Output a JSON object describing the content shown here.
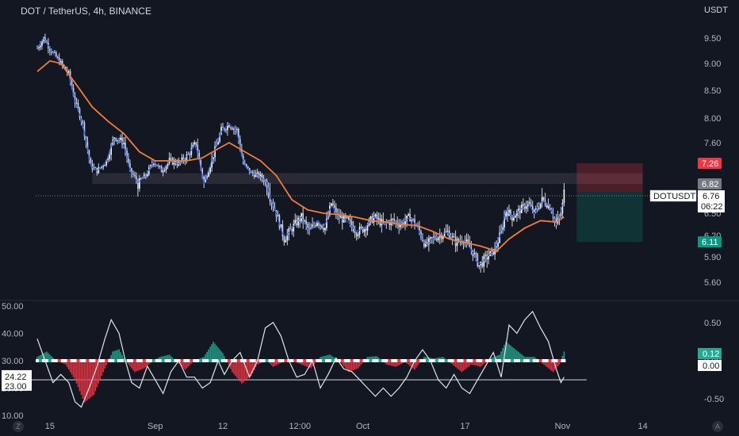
{
  "header": {
    "title": "DOT / TetherUS, 4h, BINANCE",
    "currency": "USDT"
  },
  "chart_data": [
    {
      "type": "candlestick",
      "title": "DOT / TetherUS, 4h, BINANCE",
      "y_unit": "USDT",
      "y_ticks": [
        "9.50",
        "9.00",
        "8.50",
        "8.00",
        "7.60",
        "6.50",
        "6.20",
        "5.90",
        "5.60"
      ],
      "ylim": [
        5.45,
        10.0
      ],
      "x_ticks": [
        {
          "label": "15",
          "t": 8
        },
        {
          "label": "Sep",
          "t": 75
        },
        {
          "label": "12",
          "t": 118
        },
        {
          "label": "12:00",
          "t": 167
        },
        {
          "label": "Oct",
          "t": 207
        },
        {
          "label": "17",
          "t": 272
        },
        {
          "label": "Nov",
          "t": 334
        },
        {
          "label": "14",
          "t": 385
        }
      ],
      "x_range": [
        -1,
        420
      ],
      "last_t": 335,
      "close_series": [
        {
          "t": 0,
          "v": 9.3
        },
        {
          "t": 4,
          "v": 9.5
        },
        {
          "t": 10,
          "v": 9.2
        },
        {
          "t": 15,
          "v": 9.0
        },
        {
          "t": 20,
          "v": 8.8
        },
        {
          "t": 24,
          "v": 8.3
        },
        {
          "t": 29,
          "v": 7.9
        },
        {
          "t": 34,
          "v": 7.2
        },
        {
          "t": 38,
          "v": 7.1
        },
        {
          "t": 44,
          "v": 7.3
        },
        {
          "t": 49,
          "v": 7.7
        },
        {
          "t": 55,
          "v": 7.6
        },
        {
          "t": 59,
          "v": 7.1
        },
        {
          "t": 64,
          "v": 6.85
        },
        {
          "t": 69,
          "v": 7.0
        },
        {
          "t": 74,
          "v": 7.3
        },
        {
          "t": 79,
          "v": 7.1
        },
        {
          "t": 84,
          "v": 7.3
        },
        {
          "t": 90,
          "v": 7.25
        },
        {
          "t": 96,
          "v": 7.4
        },
        {
          "t": 101,
          "v": 7.6
        },
        {
          "t": 106,
          "v": 6.85
        },
        {
          "t": 112,
          "v": 7.4
        },
        {
          "t": 117,
          "v": 7.8
        },
        {
          "t": 122,
          "v": 7.9
        },
        {
          "t": 127,
          "v": 7.8
        },
        {
          "t": 131,
          "v": 7.25
        },
        {
          "t": 136,
          "v": 7.05
        },
        {
          "t": 141,
          "v": 7.0
        },
        {
          "t": 146,
          "v": 6.85
        },
        {
          "t": 152,
          "v": 6.5
        },
        {
          "t": 157,
          "v": 6.15
        },
        {
          "t": 162,
          "v": 6.3
        },
        {
          "t": 168,
          "v": 6.45
        },
        {
          "t": 173,
          "v": 6.25
        },
        {
          "t": 178,
          "v": 6.4
        },
        {
          "t": 183,
          "v": 6.3
        },
        {
          "t": 187,
          "v": 6.65
        },
        {
          "t": 191,
          "v": 6.45
        },
        {
          "t": 197,
          "v": 6.4
        },
        {
          "t": 203,
          "v": 6.25
        },
        {
          "t": 208,
          "v": 6.3
        },
        {
          "t": 214,
          "v": 6.45
        },
        {
          "t": 220,
          "v": 6.35
        },
        {
          "t": 226,
          "v": 6.4
        },
        {
          "t": 231,
          "v": 6.35
        },
        {
          "t": 237,
          "v": 6.45
        },
        {
          "t": 242,
          "v": 6.3
        },
        {
          "t": 247,
          "v": 6.05
        },
        {
          "t": 251,
          "v": 6.15
        },
        {
          "t": 256,
          "v": 6.2
        },
        {
          "t": 261,
          "v": 6.25
        },
        {
          "t": 266,
          "v": 6.1
        },
        {
          "t": 271,
          "v": 6.15
        },
        {
          "t": 276,
          "v": 6.0
        },
        {
          "t": 281,
          "v": 5.8
        },
        {
          "t": 286,
          "v": 5.9
        },
        {
          "t": 291,
          "v": 6.0
        },
        {
          "t": 295,
          "v": 6.25
        },
        {
          "t": 298,
          "v": 6.55
        },
        {
          "t": 302,
          "v": 6.45
        },
        {
          "t": 307,
          "v": 6.55
        },
        {
          "t": 312,
          "v": 6.65
        },
        {
          "t": 316,
          "v": 6.5
        },
        {
          "t": 321,
          "v": 6.7
        },
        {
          "t": 326,
          "v": 6.6
        },
        {
          "t": 330,
          "v": 6.35
        },
        {
          "t": 333,
          "v": 6.5
        },
        {
          "t": 335,
          "v": 6.76
        }
      ],
      "ma_series": [
        {
          "t": 0,
          "v": 8.85
        },
        {
          "t": 8,
          "v": 9.05
        },
        {
          "t": 15,
          "v": 9.0
        },
        {
          "t": 25,
          "v": 8.6
        },
        {
          "t": 35,
          "v": 8.2
        },
        {
          "t": 45,
          "v": 7.95
        },
        {
          "t": 55,
          "v": 7.75
        },
        {
          "t": 65,
          "v": 7.45
        },
        {
          "t": 75,
          "v": 7.3
        },
        {
          "t": 85,
          "v": 7.3
        },
        {
          "t": 95,
          "v": 7.3
        },
        {
          "t": 105,
          "v": 7.35
        },
        {
          "t": 115,
          "v": 7.5
        },
        {
          "t": 122,
          "v": 7.6
        },
        {
          "t": 132,
          "v": 7.45
        },
        {
          "t": 142,
          "v": 7.3
        },
        {
          "t": 152,
          "v": 7.0
        },
        {
          "t": 162,
          "v": 6.7
        },
        {
          "t": 172,
          "v": 6.55
        },
        {
          "t": 182,
          "v": 6.5
        },
        {
          "t": 192,
          "v": 6.48
        },
        {
          "t": 202,
          "v": 6.45
        },
        {
          "t": 212,
          "v": 6.4
        },
        {
          "t": 222,
          "v": 6.38
        },
        {
          "t": 232,
          "v": 6.35
        },
        {
          "t": 242,
          "v": 6.33
        },
        {
          "t": 252,
          "v": 6.25
        },
        {
          "t": 262,
          "v": 6.15
        },
        {
          "t": 272,
          "v": 6.1
        },
        {
          "t": 282,
          "v": 6.05
        },
        {
          "t": 292,
          "v": 5.98
        },
        {
          "t": 300,
          "v": 6.15
        },
        {
          "t": 310,
          "v": 6.3
        },
        {
          "t": 320,
          "v": 6.4
        },
        {
          "t": 330,
          "v": 6.38
        },
        {
          "t": 335,
          "v": 6.45
        }
      ],
      "support_zone": {
        "from": 6.82,
        "to": 7.05,
        "t_start": 35,
        "t_end": 385
      },
      "position": {
        "entry": 6.82,
        "stop": 7.26,
        "target": 6.11,
        "t_start": 343,
        "t_end": 385
      },
      "price_tags": [
        {
          "label": "7.26",
          "value": 7.26,
          "color": "#f23645"
        },
        {
          "label": "6.82",
          "value": 6.82,
          "color": "#787b86"
        },
        {
          "label": "6.11",
          "value": 6.11,
          "color": "#089981"
        }
      ],
      "last_price_label": {
        "symbol": "DOTUSDT",
        "price": "6.76",
        "countdown": "06:22",
        "value": 6.76
      }
    },
    {
      "type": "oscillator",
      "left_ticks": [
        "50.00",
        "40.00",
        "30.00",
        "20.00",
        "10.00"
      ],
      "left_range": [
        10,
        50
      ],
      "right_ticks": [
        "0.50",
        "0.00",
        "-0.50"
      ],
      "right_range": [
        -0.72,
        0.72
      ],
      "left_level_tags": [
        "24.22",
        "23.00"
      ],
      "right_level_tags": [
        {
          "label": "0.12",
          "color": "#22ab94"
        },
        {
          "label": "0.00",
          "color": "#ffffff"
        }
      ],
      "histogram_pos_color": "#22ab94",
      "histogram_neg_color": "#f23645",
      "histogram": [
        {
          "t": 0,
          "v": 0.05
        },
        {
          "t": 6,
          "v": 0.12
        },
        {
          "t": 12,
          "v": 0.0
        },
        {
          "t": 18,
          "v": -0.05
        },
        {
          "t": 24,
          "v": -0.25
        },
        {
          "t": 30,
          "v": -0.55
        },
        {
          "t": 36,
          "v": -0.45
        },
        {
          "t": 42,
          "v": -0.15
        },
        {
          "t": 48,
          "v": 0.12
        },
        {
          "t": 52,
          "v": 0.15
        },
        {
          "t": 56,
          "v": 0.0
        },
        {
          "t": 62,
          "v": -0.15
        },
        {
          "t": 68,
          "v": -0.1
        },
        {
          "t": 74,
          "v": 0.0
        },
        {
          "t": 78,
          "v": 0.05
        },
        {
          "t": 84,
          "v": 0.08
        },
        {
          "t": 88,
          "v": 0.0
        },
        {
          "t": 94,
          "v": -0.12
        },
        {
          "t": 100,
          "v": 0.0
        },
        {
          "t": 106,
          "v": 0.05
        },
        {
          "t": 112,
          "v": 0.25
        },
        {
          "t": 118,
          "v": 0.1
        },
        {
          "t": 124,
          "v": -0.15
        },
        {
          "t": 130,
          "v": -0.3
        },
        {
          "t": 136,
          "v": -0.2
        },
        {
          "t": 140,
          "v": -0.05
        },
        {
          "t": 146,
          "v": 0.0
        },
        {
          "t": 150,
          "v": -0.08
        },
        {
          "t": 156,
          "v": -0.02
        },
        {
          "t": 162,
          "v": 0.0
        },
        {
          "t": 168,
          "v": -0.05
        },
        {
          "t": 174,
          "v": -0.1
        },
        {
          "t": 180,
          "v": 0.05
        },
        {
          "t": 186,
          "v": 0.08
        },
        {
          "t": 192,
          "v": 0.0
        },
        {
          "t": 198,
          "v": -0.15
        },
        {
          "t": 204,
          "v": -0.1
        },
        {
          "t": 210,
          "v": 0.05
        },
        {
          "t": 216,
          "v": 0.06
        },
        {
          "t": 222,
          "v": -0.05
        },
        {
          "t": 228,
          "v": -0.08
        },
        {
          "t": 234,
          "v": -0.02
        },
        {
          "t": 240,
          "v": -0.12
        },
        {
          "t": 246,
          "v": 0.05
        },
        {
          "t": 252,
          "v": 0.03
        },
        {
          "t": 258,
          "v": 0.05
        },
        {
          "t": 264,
          "v": -0.05
        },
        {
          "t": 270,
          "v": -0.15
        },
        {
          "t": 276,
          "v": -0.05
        },
        {
          "t": 282,
          "v": -0.08
        },
        {
          "t": 288,
          "v": 0.03
        },
        {
          "t": 294,
          "v": 0.08
        },
        {
          "t": 298,
          "v": 0.25
        },
        {
          "t": 304,
          "v": 0.15
        },
        {
          "t": 310,
          "v": 0.05
        },
        {
          "t": 316,
          "v": 0.05
        },
        {
          "t": 322,
          "v": -0.05
        },
        {
          "t": 328,
          "v": -0.15
        },
        {
          "t": 332,
          "v": -0.05
        },
        {
          "t": 335,
          "v": 0.12
        }
      ],
      "line": [
        {
          "t": 0,
          "v": 38
        },
        {
          "t": 5,
          "v": 30
        },
        {
          "t": 10,
          "v": 22
        },
        {
          "t": 15,
          "v": 25
        },
        {
          "t": 20,
          "v": 22
        },
        {
          "t": 24,
          "v": 15
        },
        {
          "t": 28,
          "v": 13
        },
        {
          "t": 33,
          "v": 20
        },
        {
          "t": 38,
          "v": 28
        },
        {
          "t": 43,
          "v": 38
        },
        {
          "t": 47,
          "v": 45
        },
        {
          "t": 52,
          "v": 40
        },
        {
          "t": 56,
          "v": 30
        },
        {
          "t": 60,
          "v": 22
        },
        {
          "t": 65,
          "v": 20
        },
        {
          "t": 70,
          "v": 28
        },
        {
          "t": 75,
          "v": 23
        },
        {
          "t": 80,
          "v": 18
        },
        {
          "t": 85,
          "v": 26
        },
        {
          "t": 90,
          "v": 30
        },
        {
          "t": 95,
          "v": 24
        },
        {
          "t": 100,
          "v": 24
        },
        {
          "t": 105,
          "v": 20
        },
        {
          "t": 110,
          "v": 22
        },
        {
          "t": 115,
          "v": 30
        },
        {
          "t": 119,
          "v": 25
        },
        {
          "t": 124,
          "v": 30
        },
        {
          "t": 129,
          "v": 33
        },
        {
          "t": 135,
          "v": 24
        },
        {
          "t": 140,
          "v": 30
        },
        {
          "t": 145,
          "v": 42
        },
        {
          "t": 150,
          "v": 44
        },
        {
          "t": 155,
          "v": 39
        },
        {
          "t": 160,
          "v": 30
        },
        {
          "t": 165,
          "v": 24
        },
        {
          "t": 170,
          "v": 25
        },
        {
          "t": 175,
          "v": 30
        },
        {
          "t": 180,
          "v": 20
        },
        {
          "t": 185,
          "v": 25
        },
        {
          "t": 190,
          "v": 31
        },
        {
          "t": 195,
          "v": 27
        },
        {
          "t": 200,
          "v": 26
        },
        {
          "t": 205,
          "v": 23
        },
        {
          "t": 210,
          "v": 20
        },
        {
          "t": 215,
          "v": 17
        },
        {
          "t": 220,
          "v": 20
        },
        {
          "t": 225,
          "v": 17
        },
        {
          "t": 230,
          "v": 20
        },
        {
          "t": 235,
          "v": 24
        },
        {
          "t": 240,
          "v": 30
        },
        {
          "t": 245,
          "v": 34
        },
        {
          "t": 250,
          "v": 30
        },
        {
          "t": 255,
          "v": 23
        },
        {
          "t": 260,
          "v": 20
        },
        {
          "t": 265,
          "v": 25
        },
        {
          "t": 270,
          "v": 20
        },
        {
          "t": 275,
          "v": 18
        },
        {
          "t": 280,
          "v": 23
        },
        {
          "t": 285,
          "v": 28
        },
        {
          "t": 290,
          "v": 33
        },
        {
          "t": 295,
          "v": 24
        },
        {
          "t": 300,
          "v": 43
        },
        {
          "t": 305,
          "v": 40
        },
        {
          "t": 310,
          "v": 45
        },
        {
          "t": 315,
          "v": 48
        },
        {
          "t": 320,
          "v": 42
        },
        {
          "t": 325,
          "v": 37
        },
        {
          "t": 330,
          "v": 27
        },
        {
          "t": 333,
          "v": 22
        },
        {
          "t": 335,
          "v": 24
        }
      ]
    }
  ],
  "footer": {
    "tz_icon_label": "Z",
    "auto_icon_label": "A"
  }
}
